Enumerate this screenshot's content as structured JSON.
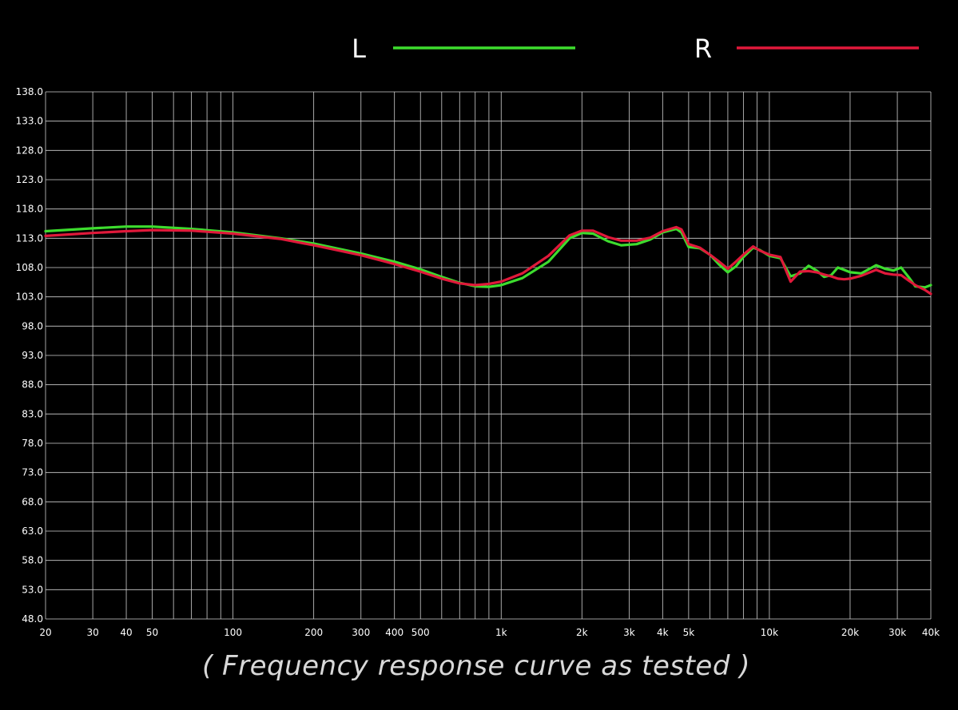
{
  "chart_data": {
    "type": "line",
    "x_scale": "log",
    "caption": "( Frequency response curve as tested )",
    "ylim": [
      48.0,
      138.0
    ],
    "xlim": [
      20,
      40000
    ],
    "y_ticks": [
      "138.0",
      "133.0",
      "128.0",
      "123.0",
      "118.0",
      "113.0",
      "108.0",
      "103.0",
      "98.0",
      "93.0",
      "88.0",
      "83.0",
      "78.0",
      "73.0",
      "68.0",
      "63.0",
      "58.0",
      "53.0",
      "48.0"
    ],
    "x_tick_labels": [
      {
        "value": 20,
        "label": "20"
      },
      {
        "value": 30,
        "label": "30"
      },
      {
        "value": 40,
        "label": "40"
      },
      {
        "value": 50,
        "label": "50"
      },
      {
        "value": 100,
        "label": "100"
      },
      {
        "value": 200,
        "label": "200"
      },
      {
        "value": 300,
        "label": "300"
      },
      {
        "value": 400,
        "label": "400"
      },
      {
        "value": 500,
        "label": "500"
      },
      {
        "value": 1000,
        "label": "1k"
      },
      {
        "value": 2000,
        "label": "2k"
      },
      {
        "value": 3000,
        "label": "3k"
      },
      {
        "value": 4000,
        "label": "4k"
      },
      {
        "value": 5000,
        "label": "5k"
      },
      {
        "value": 10000,
        "label": "10k"
      },
      {
        "value": 20000,
        "label": "20k"
      },
      {
        "value": 30000,
        "label": "30k"
      },
      {
        "value": 40000,
        "label": "40k"
      }
    ],
    "x_gridlines": [
      20,
      30,
      40,
      50,
      60,
      70,
      80,
      90,
      100,
      200,
      300,
      400,
      500,
      600,
      700,
      800,
      900,
      1000,
      2000,
      3000,
      4000,
      5000,
      6000,
      7000,
      8000,
      9000,
      10000,
      20000,
      30000,
      40000
    ],
    "grid": true,
    "legend_position": "top",
    "series": [
      {
        "name": "L",
        "color": "#3ddc2e",
        "points": [
          [
            20,
            114.2
          ],
          [
            30,
            114.7
          ],
          [
            40,
            115.0
          ],
          [
            50,
            115.0
          ],
          [
            70,
            114.6
          ],
          [
            100,
            114.0
          ],
          [
            150,
            113.0
          ],
          [
            200,
            112.1
          ],
          [
            300,
            110.4
          ],
          [
            400,
            109.0
          ],
          [
            500,
            107.7
          ],
          [
            600,
            106.4
          ],
          [
            700,
            105.4
          ],
          [
            800,
            104.8
          ],
          [
            900,
            104.7
          ],
          [
            1000,
            105.0
          ],
          [
            1200,
            106.2
          ],
          [
            1500,
            109.0
          ],
          [
            1800,
            113.0
          ],
          [
            2000,
            113.9
          ],
          [
            2200,
            113.8
          ],
          [
            2500,
            112.5
          ],
          [
            2800,
            111.8
          ],
          [
            3200,
            112.0
          ],
          [
            3600,
            112.8
          ],
          [
            4000,
            114.0
          ],
          [
            4500,
            114.6
          ],
          [
            4700,
            114.0
          ],
          [
            5000,
            111.5
          ],
          [
            5500,
            111.3
          ],
          [
            6000,
            110.2
          ],
          [
            6500,
            108.5
          ],
          [
            7000,
            107.2
          ],
          [
            7500,
            108.2
          ],
          [
            8000,
            109.8
          ],
          [
            8700,
            111.4
          ],
          [
            9200,
            111.0
          ],
          [
            10000,
            110.0
          ],
          [
            11000,
            109.6
          ],
          [
            12000,
            106.5
          ],
          [
            13000,
            107.0
          ],
          [
            14000,
            108.3
          ],
          [
            15000,
            107.5
          ],
          [
            16000,
            106.4
          ],
          [
            17000,
            106.7
          ],
          [
            18000,
            108.0
          ],
          [
            19000,
            107.6
          ],
          [
            20000,
            107.2
          ],
          [
            22000,
            107.0
          ],
          [
            25000,
            108.4
          ],
          [
            27000,
            107.8
          ],
          [
            29000,
            107.5
          ],
          [
            31000,
            108.0
          ],
          [
            33000,
            106.4
          ],
          [
            35000,
            104.8
          ],
          [
            38000,
            104.6
          ],
          [
            40000,
            105.0
          ]
        ]
      },
      {
        "name": "R",
        "color": "#e0193a",
        "points": [
          [
            20,
            113.4
          ],
          [
            30,
            113.9
          ],
          [
            40,
            114.2
          ],
          [
            50,
            114.4
          ],
          [
            70,
            114.3
          ],
          [
            100,
            113.8
          ],
          [
            150,
            112.9
          ],
          [
            200,
            111.8
          ],
          [
            300,
            110.1
          ],
          [
            400,
            108.6
          ],
          [
            500,
            107.3
          ],
          [
            600,
            106.1
          ],
          [
            700,
            105.3
          ],
          [
            800,
            105.0
          ],
          [
            900,
            105.2
          ],
          [
            1000,
            105.6
          ],
          [
            1200,
            107.0
          ],
          [
            1500,
            110.0
          ],
          [
            1800,
            113.5
          ],
          [
            2000,
            114.3
          ],
          [
            2200,
            114.3
          ],
          [
            2500,
            113.2
          ],
          [
            2800,
            112.6
          ],
          [
            3200,
            112.6
          ],
          [
            3600,
            113.1
          ],
          [
            4000,
            114.2
          ],
          [
            4500,
            114.9
          ],
          [
            4700,
            114.5
          ],
          [
            5000,
            112.0
          ],
          [
            5500,
            111.4
          ],
          [
            6000,
            110.2
          ],
          [
            6500,
            109.0
          ],
          [
            7000,
            107.8
          ],
          [
            7500,
            109.0
          ],
          [
            8000,
            110.2
          ],
          [
            8700,
            111.6
          ],
          [
            9200,
            110.9
          ],
          [
            10000,
            110.2
          ],
          [
            11000,
            109.8
          ],
          [
            12000,
            105.6
          ],
          [
            13000,
            107.3
          ],
          [
            14000,
            107.4
          ],
          [
            15000,
            107.2
          ],
          [
            16000,
            106.8
          ],
          [
            17000,
            106.5
          ],
          [
            18000,
            106.1
          ],
          [
            19000,
            106.0
          ],
          [
            20000,
            106.1
          ],
          [
            22000,
            106.6
          ],
          [
            25000,
            107.6
          ],
          [
            27000,
            107.0
          ],
          [
            29000,
            106.8
          ],
          [
            31000,
            106.7
          ],
          [
            33000,
            105.8
          ],
          [
            35000,
            105.0
          ],
          [
            38000,
            104.2
          ],
          [
            40000,
            103.5
          ]
        ]
      }
    ]
  }
}
